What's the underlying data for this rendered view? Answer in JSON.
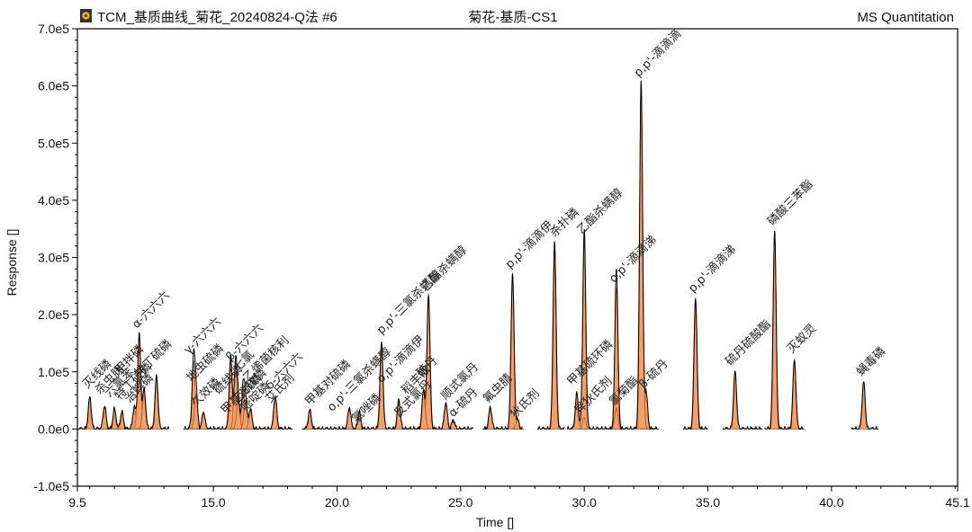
{
  "header": {
    "app_icon": "flower-app-icon",
    "file_title": "TCM_基质曲线_菊花_20240824-Q法 #6",
    "sample_title": "菊花-基质-CS1",
    "mode": "MS Quantitation"
  },
  "chart_data": {
    "type": "line",
    "title": "菊花-基质-CS1",
    "xlabel": "Time []",
    "ylabel": "Response []",
    "xlim": [
      9.5,
      45.1
    ],
    "ylim": [
      -100000,
      700000
    ],
    "x_ticks": [
      9.5,
      15.0,
      20.0,
      25.0,
      30.0,
      35.0,
      40.0,
      45.1
    ],
    "x_tick_labels": [
      "9.5",
      "15.0",
      "20.0",
      "25.0",
      "30.0",
      "35.0",
      "40.0",
      "45.1"
    ],
    "y_ticks": [
      -100000,
      0,
      100000,
      200000,
      300000,
      400000,
      500000,
      600000,
      700000
    ],
    "y_tick_labels": [
      "-1.0e5",
      "0.0e0",
      "1.0e5",
      "2.0e5",
      "3.0e5",
      "4.0e5",
      "5.0e5",
      "6.0e5",
      "7.0e5"
    ],
    "fill_color": "#f4a068",
    "fill_edge_color": "#b35a1a",
    "trace_color": "#000000",
    "peaks": [
      {
        "name": "灭线磷",
        "rt": 10.0,
        "height": 55000
      },
      {
        "name": "杀虫脒",
        "rt": 10.6,
        "height": 40000
      },
      {
        "name": "六氯苯",
        "rt": 11.0,
        "height": 35000
      },
      {
        "name": "特丁硫磷",
        "rt": 11.3,
        "height": 30000
      },
      {
        "name": "治螟磷",
        "rt": 11.8,
        "height": 38000
      },
      {
        "name": "α-六六六",
        "rt": 12.0,
        "height": 165000
      },
      {
        "name": "甲拌磷",
        "rt": 12.2,
        "height": 70000
      },
      {
        "name": "特丁硫磷",
        "rt": 12.7,
        "height": 92000
      },
      {
        "name": "γ-六六六",
        "rt": 14.2,
        "height": 120000
      },
      {
        "name": "地虫硫磷",
        "rt": 14.3,
        "height": 60000
      },
      {
        "name": "久效磷",
        "rt": 14.6,
        "height": 30000
      },
      {
        "name": "七氯",
        "rt": 15.7,
        "height": 125000
      },
      {
        "name": "β-六六六",
        "rt": 15.9,
        "height": 112000
      },
      {
        "name": "硫线磷",
        "rt": 16.2,
        "height": 70000
      },
      {
        "name": "甲基对硫磷",
        "rt": 16.0,
        "height": 48000
      },
      {
        "name": "δ-六六六",
        "rt": 16.3,
        "height": 50000
      },
      {
        "name": "氯唑磷",
        "rt": 16.5,
        "height": 35000
      },
      {
        "name": "艾氏剂",
        "rt": 17.5,
        "height": 58000
      },
      {
        "name": "甲基对硫磷",
        "rt": 18.9,
        "height": 33000
      },
      {
        "name": "o,p'-三氯杀螨醇",
        "rt": 21.8,
        "height": 150000
      },
      {
        "name": "乙拌磷",
        "rt": 20.5,
        "height": 38000
      },
      {
        "name": "o,p'-滴滴伊",
        "rt": 20.9,
        "height": 30000
      },
      {
        "name": "p,p'-三氯杀螨醇",
        "rt": 23.7,
        "height": 237000
      },
      {
        "name": "硫丹",
        "rt": 23.5,
        "height": 68000
      },
      {
        "name": "反式氯丹",
        "rt": 22.5,
        "height": 52000
      },
      {
        "name": "顺式氯丹",
        "rt": 24.4,
        "height": 46000
      },
      {
        "name": "α-硫丹",
        "rt": 24.7,
        "height": 16000
      },
      {
        "name": "氟虫腈",
        "rt": 26.2,
        "height": 38000
      },
      {
        "name": "p,p'-滴滴伊",
        "rt": 27.1,
        "height": 273000
      },
      {
        "name": "狄氏剂",
        "rt": 27.3,
        "height": 16000
      },
      {
        "name": "杀扑磷",
        "rt": 28.8,
        "height": 327000
      },
      {
        "name": "乙酯杀螨醇",
        "rt": 30.0,
        "height": 330000
      },
      {
        "name": "甲基硫环磷",
        "rt": 29.7,
        "height": 62000
      },
      {
        "name": "异狄氏剂",
        "rt": 30.0,
        "height": 20000
      },
      {
        "name": "o,p'-滴滴涕",
        "rt": 31.3,
        "height": 247000
      },
      {
        "name": "氯菊酯",
        "rt": 31.3,
        "height": 37000
      },
      {
        "name": "β-硫丹",
        "rt": 32.5,
        "height": 65000
      },
      {
        "name": "p,p'-滴滴滴",
        "rt": 32.3,
        "height": 610000
      },
      {
        "name": "p,p'-滴滴涕",
        "rt": 34.5,
        "height": 230000
      },
      {
        "name": "硫丹硫酸酯",
        "rt": 36.1,
        "height": 100000
      },
      {
        "name": "磷酸三苯酯",
        "rt": 37.7,
        "height": 347000
      },
      {
        "name": "灭蚁灵",
        "rt": 38.5,
        "height": 122000
      },
      {
        "name": "蝇毒磷",
        "rt": 41.3,
        "height": 82000
      }
    ],
    "labels": [
      {
        "text": "灭线磷",
        "rt": 9.9,
        "y": 70000
      },
      {
        "text": "杀虫脒",
        "rt": 10.4,
        "y": 60000
      },
      {
        "text": "六氯苯",
        "rt": 10.8,
        "y": 55000
      },
      {
        "text": "特丁硫磷",
        "rt": 11.2,
        "y": 50000
      },
      {
        "text": "治螟磷",
        "rt": 11.6,
        "y": 45000
      },
      {
        "text": "α-六六六",
        "rt": 11.9,
        "y": 175000
      },
      {
        "text": "甲拌磷",
        "rt": 11.2,
        "y": 95000
      },
      {
        "text": "特丁硫磷",
        "rt": 12.0,
        "y": 90000
      },
      {
        "text": "γ-六六六",
        "rt": 14.0,
        "y": 130000
      },
      {
        "text": "地虫硫磷",
        "rt": 14.1,
        "y": 82000
      },
      {
        "text": "久效磷",
        "rt": 14.3,
        "y": 38000
      },
      {
        "text": "七氯",
        "rt": 16.0,
        "y": 100000
      },
      {
        "text": "β-六六六",
        "rt": 15.7,
        "y": 118000
      },
      {
        "text": "硫线磷",
        "rt": 15.2,
        "y": 60000
      },
      {
        "text": "甲基对硫磷",
        "rt": 15.5,
        "y": 25000
      },
      {
        "text": "乙硫磷",
        "rt": 16.0,
        "y": 45000
      },
      {
        "text": "嘧啶磷",
        "rt": 16.3,
        "y": 30000
      },
      {
        "text": "δ-六六六",
        "rt": 17.3,
        "y": 68000
      },
      {
        "text": "乙烯菌核利",
        "rt": 16.4,
        "y": 82000
      },
      {
        "text": "艾氏剂",
        "rt": 17.3,
        "y": 45000
      },
      {
        "text": "甲基对硫磷",
        "rt": 18.9,
        "y": 40000
      },
      {
        "text": "o,p'-三氯杀螨醇",
        "rt": 19.8,
        "y": 30000
      },
      {
        "text": "氯唑磷",
        "rt": 20.8,
        "y": 10000
      },
      {
        "text": "p,p'-三氯杀螨醇",
        "rt": 21.8,
        "y": 165000
      },
      {
        "text": "o,p'-滴滴伊",
        "rt": 21.8,
        "y": 80000
      },
      {
        "text": "稻丰散",
        "rt": 22.8,
        "y": 60000
      },
      {
        "text": "硫丹",
        "rt": 23.4,
        "y": 90000
      },
      {
        "text": "反式氯丹",
        "rt": 22.5,
        "y": 20000
      },
      {
        "text": "顺式氯丹",
        "rt": 24.4,
        "y": 50000
      },
      {
        "text": "α-硫丹",
        "rt": 24.7,
        "y": 20000
      },
      {
        "text": "氟虫腈",
        "rt": 26.1,
        "y": 45000
      },
      {
        "text": "乙酯杀螨醇",
        "rt": 23.6,
        "y": 240000
      },
      {
        "text": "p,p'-滴滴伊",
        "rt": 27.0,
        "y": 280000
      },
      {
        "text": "狄氏剂",
        "rt": 27.2,
        "y": 18000
      },
      {
        "text": "杀扑磷",
        "rt": 28.8,
        "y": 335000
      },
      {
        "text": "乙酯杀螨醇",
        "rt": 29.9,
        "y": 340000
      },
      {
        "text": "甲基硫环磷",
        "rt": 29.5,
        "y": 75000
      },
      {
        "text": "异狄氏剂",
        "rt": 29.8,
        "y": 25000
      },
      {
        "text": "o,p'-滴滴涕",
        "rt": 31.2,
        "y": 255000
      },
      {
        "text": "氯菊酯",
        "rt": 31.2,
        "y": 40000
      },
      {
        "text": "β-硫丹",
        "rt": 32.4,
        "y": 70000
      },
      {
        "text": "p,p'-滴滴滴",
        "rt": 32.2,
        "y": 615000
      },
      {
        "text": "p,p'-滴滴涕",
        "rt": 34.4,
        "y": 238000
      },
      {
        "text": "硫丹硫酸酯",
        "rt": 35.9,
        "y": 110000
      },
      {
        "text": "磷酸三苯酯",
        "rt": 37.6,
        "y": 355000
      },
      {
        "text": "灭蚁灵",
        "rt": 38.4,
        "y": 132000
      },
      {
        "text": "蝇毒磷",
        "rt": 41.2,
        "y": 92000
      }
    ],
    "raw_segments": [
      {
        "from": 9.5,
        "to": 13.2
      },
      {
        "from": 13.8,
        "to": 18.2
      },
      {
        "from": 18.6,
        "to": 20.3
      },
      {
        "from": 20.3,
        "to": 24.6
      },
      {
        "from": 24.6,
        "to": 25.5
      },
      {
        "from": 25.9,
        "to": 27.5
      },
      {
        "from": 28.1,
        "to": 29.2
      },
      {
        "from": 29.3,
        "to": 31.0
      },
      {
        "from": 31.0,
        "to": 33.0
      },
      {
        "from": 34.0,
        "to": 35.0
      },
      {
        "from": 35.6,
        "to": 37.2
      },
      {
        "from": 37.3,
        "to": 38.9
      },
      {
        "from": 40.8,
        "to": 41.9
      }
    ]
  }
}
